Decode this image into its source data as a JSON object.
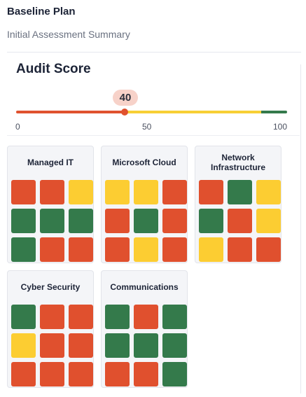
{
  "header": {
    "title": "Baseline Plan",
    "subtitle": "Initial Assessment Summary"
  },
  "audit": {
    "title": "Audit Score",
    "score": 40,
    "score_label": "40",
    "scale_min": 0,
    "scale_max": 100,
    "ticks": [
      "0",
      "50",
      "100"
    ],
    "segments": [
      {
        "from": 0,
        "to": 40,
        "color": "#e0522f"
      },
      {
        "from": 40,
        "to": 85,
        "color": "#f7cf35"
      },
      {
        "from": 85,
        "to": 100,
        "color": "#347a4b"
      }
    ]
  },
  "colors": {
    "red": "#e0502e",
    "yellow": "#fccd32",
    "green": "#347a4b"
  },
  "categories": [
    {
      "name": "Managed IT",
      "cells": [
        "red",
        "red",
        "yellow",
        "green",
        "green",
        "green",
        "green",
        "red",
        "red"
      ]
    },
    {
      "name": "Microsoft Cloud",
      "cells": [
        "yellow",
        "yellow",
        "red",
        "red",
        "green",
        "red",
        "red",
        "yellow",
        "red"
      ]
    },
    {
      "name": "Network Infrastructure",
      "cells": [
        "red",
        "green",
        "yellow",
        "green",
        "red",
        "yellow",
        "yellow",
        "red",
        "red"
      ]
    },
    {
      "name": "Cyber Security",
      "cells": [
        "green",
        "red",
        "red",
        "yellow",
        "red",
        "red",
        "red",
        "red",
        "red"
      ]
    },
    {
      "name": "Communications",
      "cells": [
        "green",
        "red",
        "green",
        "green",
        "green",
        "green",
        "red",
        "red",
        "green"
      ]
    }
  ]
}
